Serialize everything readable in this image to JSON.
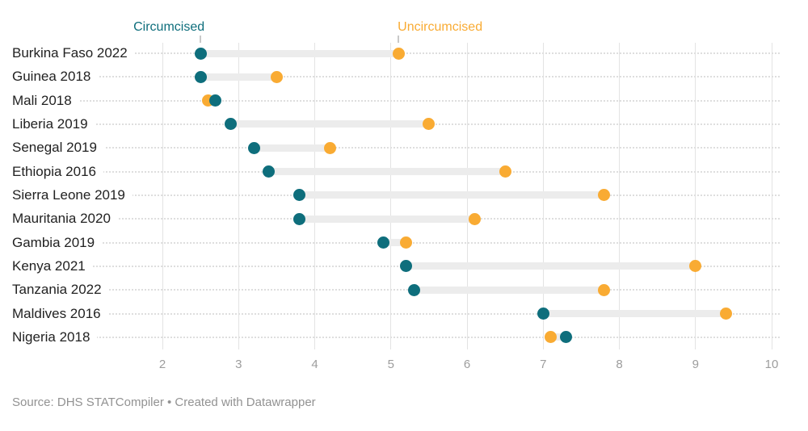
{
  "legend": {
    "circumcised": {
      "label": "Circumcised"
    },
    "uncircumcised": {
      "label": "Uncircumcised"
    }
  },
  "footer": {
    "text": "Source: DHS STATCompiler • Created with Datawrapper"
  },
  "colors": {
    "circumcised": "#0e6e7c",
    "uncircumcised": "#f9ab33",
    "connector_bar": "#ececec",
    "gridline": "#e3e3e3",
    "row_leader_dots": "#dedede",
    "axis_tick_text": "#9d9d9d",
    "row_label_text": "#222222",
    "footer_text": "#929292"
  },
  "chart_data": {
    "type": "dumbbell",
    "categories": [
      "Burkina Faso 2022",
      "Guinea 2018",
      "Mali 2018",
      "Liberia 2019",
      "Senegal 2019",
      "Ethiopia 2016",
      "Sierra Leone 2019",
      "Mauritania 2020",
      "Gambia 2019",
      "Kenya 2021",
      "Tanzania 2022",
      "Maldives 2016",
      "Nigeria 2018"
    ],
    "series": [
      {
        "name": "Circumcised",
        "color": "#0e6e7c",
        "values": [
          2.5,
          2.5,
          2.7,
          2.9,
          3.2,
          3.4,
          3.8,
          3.8,
          4.9,
          5.2,
          5.3,
          7.0,
          7.3
        ]
      },
      {
        "name": "Uncircumcised",
        "color": "#f9ab33",
        "values": [
          5.1,
          3.5,
          2.6,
          5.5,
          4.2,
          6.5,
          7.8,
          6.1,
          5.2,
          9.0,
          7.8,
          9.4,
          7.1
        ]
      }
    ],
    "xlim": [
      2,
      10
    ],
    "xticks": [
      2,
      3,
      4,
      5,
      6,
      7,
      8,
      9,
      10
    ],
    "grid": true,
    "legend_position": "top",
    "title": "",
    "xlabel": "",
    "ylabel": ""
  }
}
